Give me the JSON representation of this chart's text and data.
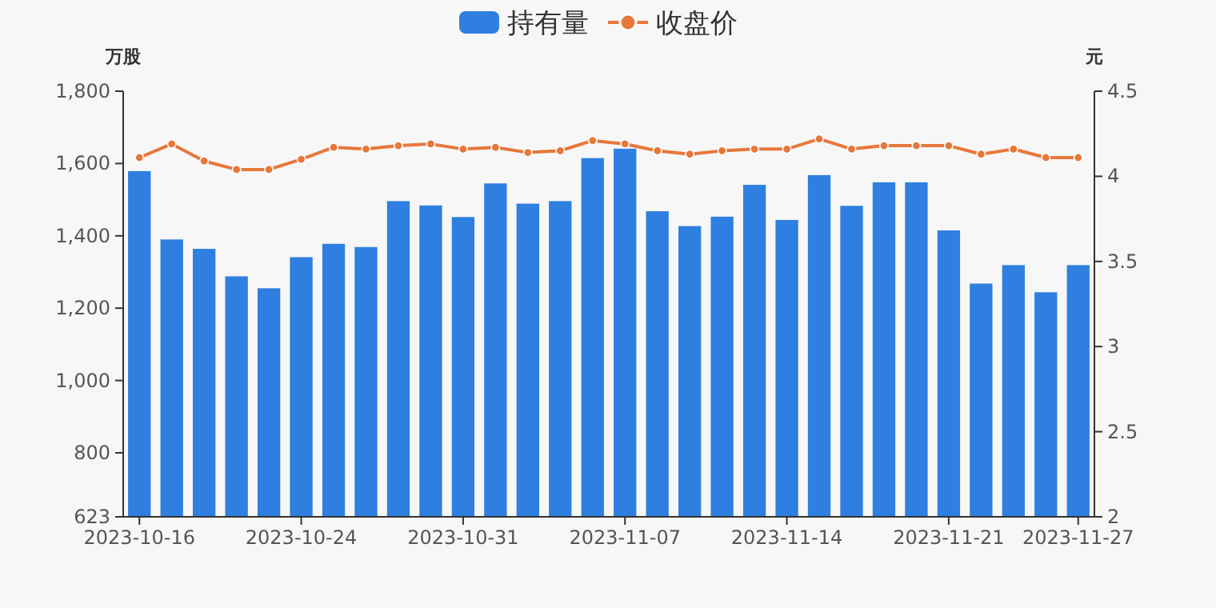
{
  "chart_data": {
    "type": "bar",
    "ylabel": "万股",
    "y2label": "元",
    "categories": [
      "2023-10-16",
      null,
      null,
      null,
      null,
      "2023-10-24",
      null,
      null,
      null,
      null,
      "2023-10-31",
      null,
      null,
      null,
      null,
      "2023-11-07",
      null,
      null,
      null,
      null,
      "2023-11-14",
      null,
      null,
      null,
      null,
      "2023-11-21",
      null,
      null,
      null,
      "2023-11-27"
    ],
    "series": [
      {
        "name": "持有量",
        "color": "#2f7fe0",
        "values": [
          1579,
          1390,
          1364,
          1288,
          1255,
          1341,
          1378,
          1369,
          1496,
          1484,
          1452,
          1545,
          1489,
          1496,
          1615,
          1641,
          1468,
          1427,
          1453,
          1541,
          1444,
          1568,
          1483,
          1548,
          1548,
          1415,
          1268,
          1319,
          1244,
          1319
        ]
      },
      {
        "name": "收盘价",
        "type": "line",
        "axis": "y2",
        "color": "#e8773a",
        "marker": "circle",
        "values": [
          4.11,
          4.19,
          4.09,
          4.04,
          4.04,
          4.1,
          4.17,
          4.16,
          4.18,
          4.19,
          4.16,
          4.17,
          4.14,
          4.15,
          4.21,
          4.19,
          4.15,
          4.13,
          4.15,
          4.16,
          4.16,
          4.22,
          4.16,
          4.18,
          4.18,
          4.18,
          4.13,
          4.16,
          4.11,
          4.11
        ]
      }
    ],
    "ylim": [
      623,
      1800
    ],
    "yticks": [
      623,
      800,
      {
        "value": 1000,
        "label": "1,000"
      },
      {
        "value": 1200,
        "label": "1,200"
      },
      {
        "value": 1400,
        "label": "1,400"
      },
      {
        "value": 1600,
        "label": "1,600"
      },
      {
        "value": 1800,
        "label": "1,800"
      }
    ],
    "y2lim": [
      2,
      4.5
    ],
    "y2ticks": [
      2,
      2.5,
      3,
      3.5,
      4,
      4.5
    ],
    "legend": "top",
    "grid": false
  }
}
